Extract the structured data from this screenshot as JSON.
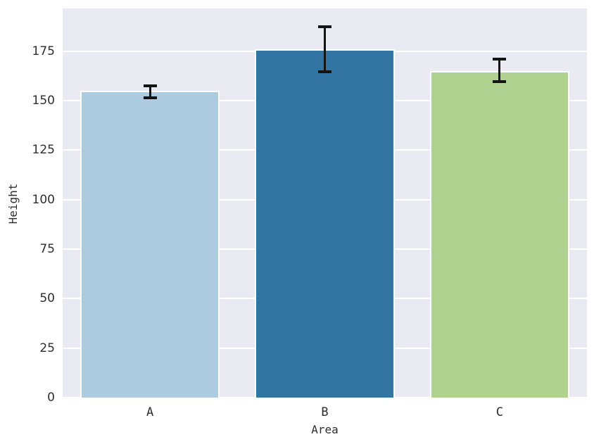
{
  "figure": {
    "background": "#ffffff",
    "plot_background": "#e9eaf2",
    "grid_color": "#ffffff",
    "text_color": "#2e2e2e",
    "error_bar_color": "#141414"
  },
  "chart_data": {
    "type": "bar",
    "title": "",
    "xlabel": "Area",
    "ylabel": "Height",
    "categories": [
      "A",
      "B",
      "C"
    ],
    "values": [
      155,
      176,
      165
    ],
    "error_low": [
      151.5,
      164.5,
      159.5
    ],
    "error_high": [
      157.5,
      187.5,
      171
    ],
    "bar_colors": [
      "#accbe1",
      "#3274a2",
      "#afd291"
    ],
    "yticks": [
      0,
      25,
      50,
      75,
      100,
      125,
      150,
      175
    ],
    "ylim": [
      0,
      196.6
    ],
    "grid": "horizontal",
    "bar_width_fraction": 0.8,
    "legend": null
  }
}
